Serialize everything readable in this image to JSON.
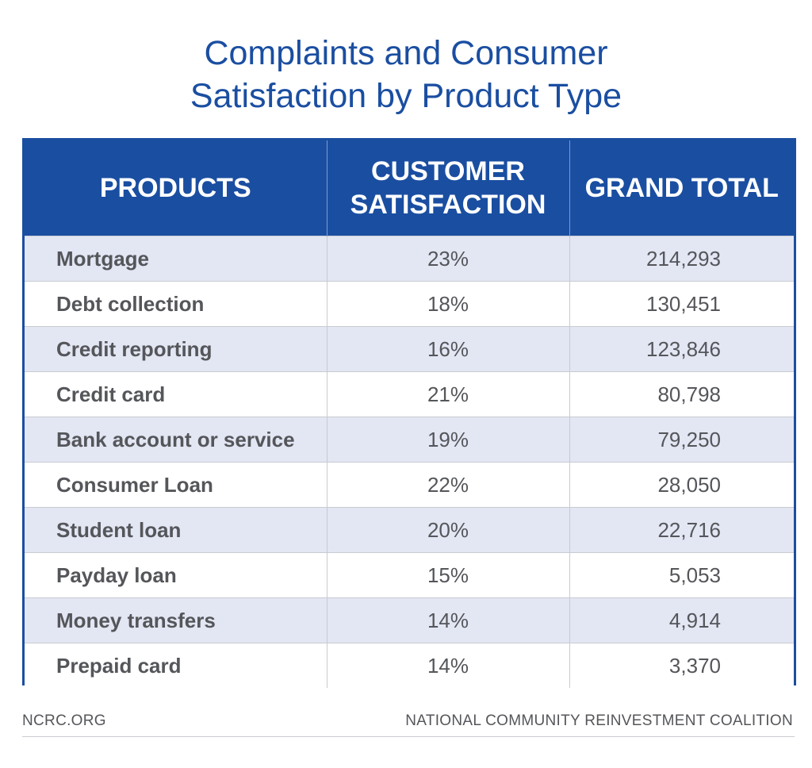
{
  "chart_data": {
    "type": "table",
    "title_lines": [
      "Complaints and Consumer",
      "Satisfaction by Product Type"
    ],
    "columns": [
      {
        "lines": [
          "PRODUCTS"
        ]
      },
      {
        "lines": [
          "CUSTOMER",
          "SATISFACTION"
        ]
      },
      {
        "lines": [
          "GRAND TOTAL"
        ]
      }
    ],
    "rows": [
      {
        "product": "Mortgage",
        "satisfaction": "23%",
        "total": "214,293"
      },
      {
        "product": "Debt collection",
        "satisfaction": "18%",
        "total": "130,451"
      },
      {
        "product": "Credit reporting",
        "satisfaction": "16%",
        "total": "123,846"
      },
      {
        "product": "Credit card",
        "satisfaction": "21%",
        "total": "80,798"
      },
      {
        "product": "Bank account or service",
        "satisfaction": "19%",
        "total": "79,250"
      },
      {
        "product": "Consumer Loan",
        "satisfaction": "22%",
        "total": "28,050"
      },
      {
        "product": "Student loan",
        "satisfaction": "20%",
        "total": "22,716"
      },
      {
        "product": "Payday loan",
        "satisfaction": "15%",
        "total": "5,053"
      },
      {
        "product": "Money transfers",
        "satisfaction": "14%",
        "total": "4,914"
      },
      {
        "product": "Prepaid card",
        "satisfaction": "14%",
        "total": "3,370"
      }
    ]
  },
  "footer": {
    "left": "NCRC.ORG",
    "right": "NATIONAL COMMUNITY REINVESTMENT COALITION"
  },
  "colors": {
    "header_bg": "#1a4ea1",
    "title": "#1a4ea1",
    "stripe": "#e3e6f3",
    "text": "#54565a"
  }
}
